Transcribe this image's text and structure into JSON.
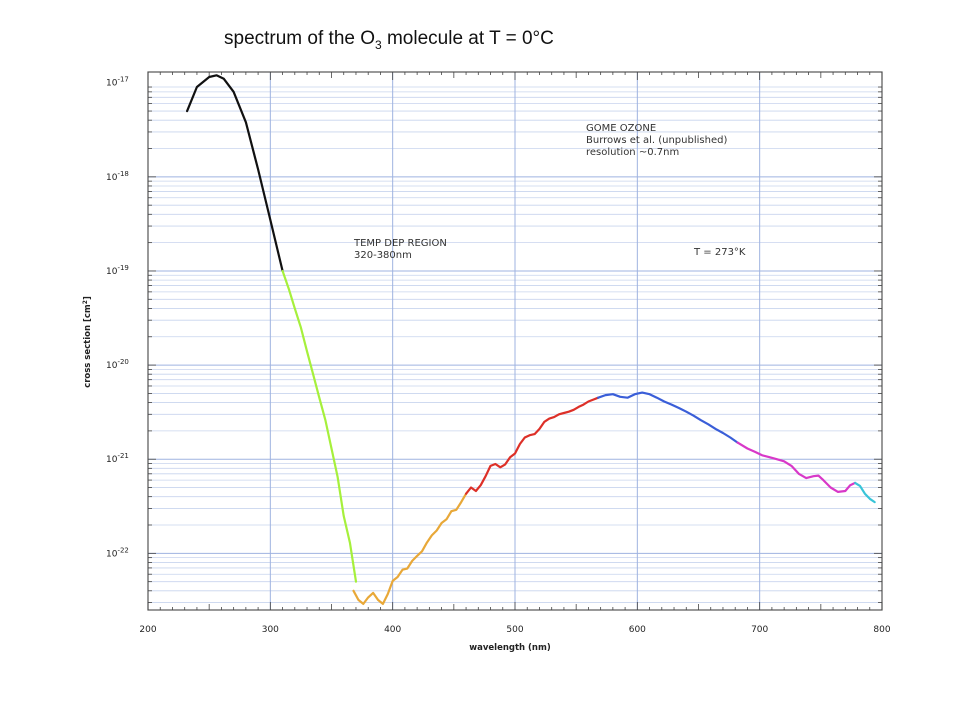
{
  "slide": {
    "title_prefix": "spectrum of the O",
    "title_sub": "3",
    "title_suffix": " molecule at T = 0°C"
  },
  "chart_data": {
    "type": "line",
    "yscale": "log",
    "xlabel": "wavelength (nm)",
    "ylabel_prefix": "cross section [cm",
    "ylabel_sup": "2",
    "ylabel_suffix": "]",
    "xlim": [
      200,
      800
    ],
    "ylim": [
      2.5e-23,
      1.3e-17
    ],
    "grid": true,
    "x_ticks": [
      {
        "value": 200,
        "label": "200"
      },
      {
        "value": 300,
        "label": "300"
      },
      {
        "value": 400,
        "label": "400"
      },
      {
        "value": 500,
        "label": "500"
      },
      {
        "value": 600,
        "label": "600"
      },
      {
        "value": 700,
        "label": "700"
      },
      {
        "value": 800,
        "label": "800"
      }
    ],
    "y_ticks": [
      {
        "exp": -17,
        "base": "10",
        "sup": "-17"
      },
      {
        "exp": -18,
        "base": "10",
        "sup": "-18"
      },
      {
        "exp": -19,
        "base": "10",
        "sup": "-19"
      },
      {
        "exp": -20,
        "base": "10",
        "sup": "-20"
      },
      {
        "exp": -21,
        "base": "10",
        "sup": "-21"
      },
      {
        "exp": -22,
        "base": "10",
        "sup": "-22"
      }
    ],
    "annotations": {
      "legend_lines": [
        "GOME OZONE",
        "Burrows et al. (unpublished)",
        "resolution ~0.7nm"
      ],
      "region_lines": [
        "TEMP DEP REGION",
        "320-380nm"
      ],
      "temperature": "T = 273°K"
    },
    "series": [
      {
        "color": "#111111",
        "x": [
          232,
          240,
          250,
          256,
          262,
          270,
          280,
          290,
          300,
          310
        ],
        "y": [
          5e-18,
          9e-18,
          1.15e-17,
          1.2e-17,
          1.1e-17,
          8e-18,
          3.8e-18,
          1.2e-18,
          3.5e-19,
          1e-19
        ]
      },
      {
        "color": "#a6f03c",
        "x": [
          310,
          315,
          320,
          325,
          330,
          335,
          340,
          345,
          350,
          355,
          360,
          365,
          370
        ],
        "y": [
          1e-19,
          6.5e-20,
          4e-20,
          2.5e-20,
          1.4e-20,
          8e-21,
          4.5e-21,
          2.6e-21,
          1.3e-21,
          6.5e-22,
          2.5e-22,
          1.3e-22,
          5e-23
        ]
      },
      {
        "color": "#e8a838",
        "x": [
          368,
          372,
          376,
          380,
          384,
          388,
          392,
          396,
          400,
          404,
          408,
          412,
          416,
          420,
          424,
          428,
          432,
          436,
          440,
          444,
          448,
          452,
          456,
          460
        ],
        "y": [
          4e-23,
          3.2e-23,
          2.9e-23,
          3.4e-23,
          3.8e-23,
          3.2e-23,
          2.9e-23,
          3.7e-23,
          5.1e-23,
          5.6e-23,
          6.7e-23,
          6.9e-23,
          8.3e-23,
          9.4e-23,
          1.05e-22,
          1.3e-22,
          1.55e-22,
          1.75e-22,
          2.1e-22,
          2.3e-22,
          2.8e-22,
          2.9e-22,
          3.5e-22,
          4.3e-22
        ]
      },
      {
        "color": "#dd3028",
        "x": [
          460,
          464,
          468,
          472,
          476,
          480,
          484,
          488,
          492,
          496,
          500,
          504,
          508,
          512,
          516,
          520,
          524,
          528,
          532,
          536,
          540,
          544,
          548,
          552,
          556,
          560,
          564,
          568
        ],
        "y": [
          4.3e-22,
          5e-22,
          4.6e-22,
          5.3e-22,
          6.6e-22,
          8.5e-22,
          8.9e-22,
          8.2e-22,
          8.8e-22,
          1.05e-21,
          1.15e-21,
          1.45e-21,
          1.7e-21,
          1.8e-21,
          1.85e-21,
          2.1e-21,
          2.5e-21,
          2.7e-21,
          2.8e-21,
          3e-21,
          3.1e-21,
          3.2e-21,
          3.35e-21,
          3.6e-21,
          3.8e-21,
          4.1e-21,
          4.3e-21,
          4.5e-21
        ]
      },
      {
        "color": "#3a5ed8",
        "x": [
          568,
          574,
          580,
          586,
          592,
          598,
          604,
          610,
          616,
          622,
          628,
          634,
          640,
          646,
          652,
          658,
          664,
          670,
          676,
          682
        ],
        "y": [
          4.5e-21,
          4.8e-21,
          4.9e-21,
          4.6e-21,
          4.5e-21,
          4.9e-21,
          5.1e-21,
          4.9e-21,
          4.5e-21,
          4.1e-21,
          3.8e-21,
          3.5e-21,
          3.2e-21,
          2.9e-21,
          2.6e-21,
          2.35e-21,
          2.1e-21,
          1.9e-21,
          1.7e-21,
          1.5e-21
        ]
      },
      {
        "color": "#d838c8",
        "x": [
          682,
          690,
          696,
          702,
          708,
          714,
          720,
          726,
          732,
          738,
          744,
          748,
          752,
          758,
          764,
          770,
          774,
          778
        ],
        "y": [
          1.5e-21,
          1.3e-21,
          1.2e-21,
          1.1e-21,
          1.05e-21,
          1e-21,
          9.5e-22,
          8.5e-22,
          7e-22,
          6.3e-22,
          6.6e-22,
          6.7e-22,
          6e-22,
          5e-22,
          4.5e-22,
          4.6e-22,
          5.3e-22,
          5.6e-22
        ]
      },
      {
        "color": "#38c4d8",
        "x": [
          778,
          782,
          786,
          790,
          794
        ],
        "y": [
          5.6e-22,
          5.2e-22,
          4.3e-22,
          3.8e-22,
          3.5e-22
        ]
      }
    ]
  }
}
